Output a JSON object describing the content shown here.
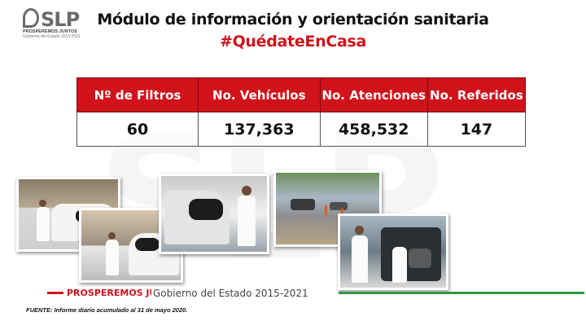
{
  "logo": {
    "name": "SLP",
    "line1": "PROSPEREMOS JUNTOS",
    "line2": "Gobierno del Estado 2015-2021"
  },
  "header": {
    "title": "Módulo de información y orientación sanitaria",
    "hashtag": "#QuédateEnCasa"
  },
  "table": {
    "columns": [
      "Nº de Filtros",
      "No. Vehículos",
      "No. Atenciones",
      "No. Referidos"
    ],
    "values": [
      "60",
      "137,363",
      "458,532",
      "147"
    ]
  },
  "footer": {
    "brand": "PROSPEREMOS JUNTOS",
    "government": "Gobierno del Estado 2015-2021",
    "source": "FUENTE: Informe diario acumulado al 31 de mayo 2020."
  },
  "colors": {
    "accent_red": "#d0121b",
    "accent_green": "#2e9a3e"
  }
}
